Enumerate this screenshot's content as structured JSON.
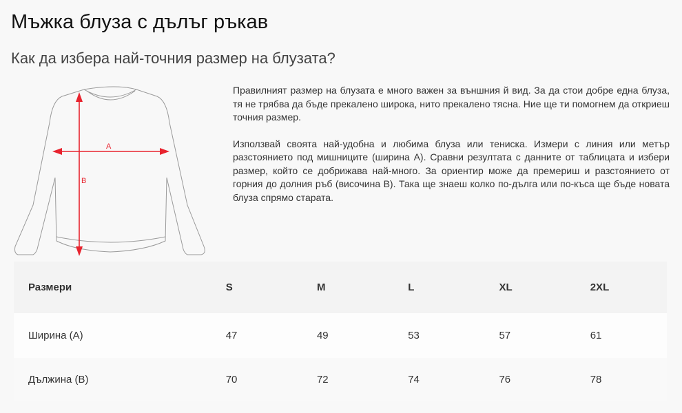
{
  "title": "Мъжка блуза с дълъг ръкав",
  "subtitle": "Как да избера най-точния размер на блузата?",
  "diagram": {
    "label_a": "A",
    "label_b": "B",
    "arrow_color": "#e8232e"
  },
  "description": [
    "Правилният размер на блузата е много важен за външния й вид. За да стои добре една блуза, тя не трябва да бъде прекалено широка, нито прекалено тясна. Ние ще ти помогнем да откриеш точния размер.",
    "Използвай своята най-удобна и любима блуза или тениска. Измери с линия или метър разстоянието под мишниците (ширина А). Сравни резултата с данните от таблицата и избери размер, който се добрижава най-много. За ориентир може да премериш и разстоянието от горния до долния ръб (височина В). Така ще знаеш колко по-дълга или по-къса ще бъде новата блуза спрямо старата."
  ],
  "size_table": {
    "headers": [
      "Размери",
      "S",
      "M",
      "L",
      "XL",
      "2XL"
    ],
    "rows": [
      [
        "Ширина (А)",
        "47",
        "49",
        "53",
        "57",
        "61"
      ],
      [
        "Дължина (В)",
        "70",
        "72",
        "74",
        "76",
        "78"
      ]
    ]
  }
}
